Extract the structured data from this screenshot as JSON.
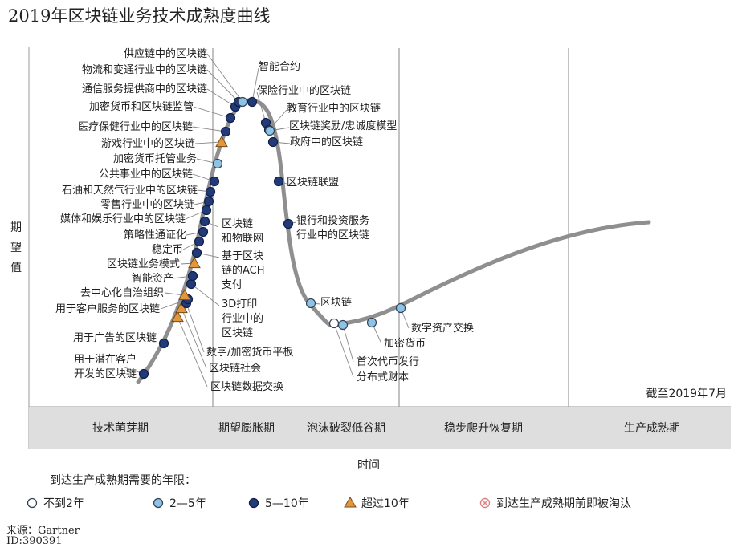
{
  "title": "2019年区块链业务技术成熟度曲线",
  "source": "来源：Gartner",
  "id": "ID:390391",
  "colors": {
    "line": "#8f8f8f",
    "phase_band": "#dedede",
    "divider": "#9a9a9a",
    "lt2": "#ffffff",
    "y2to5": "#8ec3e6",
    "y5to10": "#223a78",
    "gt10": "#e3973d",
    "obsolete": "#e08080",
    "leader": "#888888"
  },
  "chart_data": {
    "type": "hype-cycle",
    "ylabel": "期望值",
    "xlabel": "时间",
    "as_of": "截至2019年7月",
    "phases": [
      "技术萌芽期",
      "期望膨胀期",
      "泡沫破裂低谷期",
      "稳步爬升恢复期",
      "生产成熟期"
    ],
    "legend_title": "到达生产成熟期需要的年限：",
    "legend": [
      {
        "key": "lt2",
        "label": "不到2年",
        "marker": "circle-open"
      },
      {
        "key": "y2to5",
        "label": "2—5年",
        "marker": "circle-light"
      },
      {
        "key": "y5to10",
        "label": "5—10年",
        "marker": "circle-dark"
      },
      {
        "key": "gt10",
        "label": "超过10年",
        "marker": "triangle"
      },
      {
        "key": "obsolete",
        "label": "到达生产成熟期前即被淘汰",
        "marker": "circle-x"
      }
    ],
    "points": [
      {
        "label": "用于潜在客户开发的区块链",
        "lines": [
          "用于潜在客户",
          "开发的区块链"
        ],
        "category": "y5to10"
      },
      {
        "label": "用于广告的区块链",
        "category": "y5to10"
      },
      {
        "label": "区块链数据交换",
        "category": "gt10"
      },
      {
        "label": "区块链社会",
        "category": "gt10"
      },
      {
        "label": "数字/加密货币平板",
        "category": "y5to10"
      },
      {
        "label": "用于客户服务的区块链",
        "category": "y5to10"
      },
      {
        "label": "去中心化自治组织",
        "category": "gt10"
      },
      {
        "label": "3D打印行业中的区块链",
        "lines": [
          "3D打印",
          "行业中的",
          "区块链"
        ],
        "category": "y5to10"
      },
      {
        "label": "智能资产",
        "category": "y5to10"
      },
      {
        "label": "区块链业务模式",
        "category": "gt10"
      },
      {
        "label": "基于区块链的ACH支付",
        "lines": [
          "基于区块",
          "链的ACH",
          "支付"
        ],
        "category": "y5to10"
      },
      {
        "label": "稳定币",
        "category": "y5to10"
      },
      {
        "label": "策略性通证化",
        "category": "y5to10"
      },
      {
        "label": "区块链和物联网",
        "lines": [
          "区块链",
          "和物联网"
        ],
        "category": "y5to10"
      },
      {
        "label": "媒体和娱乐行业中的区块链",
        "category": "y5to10"
      },
      {
        "label": "零售行业中的区块链",
        "category": "y5to10"
      },
      {
        "label": "石油和天然气行业中的区块链",
        "category": "y5to10"
      },
      {
        "label": "公共事业中的区块链",
        "category": "y5to10"
      },
      {
        "label": "加密货币托管业务",
        "category": "y2to5"
      },
      {
        "label": "游戏行业中的区块链",
        "category": "gt10"
      },
      {
        "label": "医疗保健行业中的区块链",
        "category": "y5to10"
      },
      {
        "label": "加密货币和区块链监管",
        "category": "y5to10"
      },
      {
        "label": "通信服务提供商中的区块链",
        "category": "y5to10"
      },
      {
        "label": "物流和变通行业中的区块链",
        "category": "y5to10"
      },
      {
        "label": "供应链中的区块链",
        "category": "y2to5"
      },
      {
        "label": "智能合约",
        "category": "y5to10"
      },
      {
        "label": "保险行业中的区块链",
        "category": "y5to10"
      },
      {
        "label": "教育行业中的区块链",
        "category": "y5to10"
      },
      {
        "label": "区块链奖励/忠诚度模型",
        "category": "y2to5"
      },
      {
        "label": "政府中的区块链",
        "category": "y5to10"
      },
      {
        "label": "区块链联盟",
        "category": "y5to10"
      },
      {
        "label": "银行和投资服务行业中的区块链",
        "lines": [
          "银行和投资服务",
          "行业中的区块链"
        ],
        "category": "y5to10"
      },
      {
        "label": "区块链",
        "category": "y2to5"
      },
      {
        "label": "分布式财本",
        "category": "lt2"
      },
      {
        "label": "首次代币发行",
        "category": "y2to5"
      },
      {
        "label": "加密货币",
        "category": "y2to5"
      },
      {
        "label": "数字资产交换",
        "category": "y2to5"
      }
    ]
  }
}
